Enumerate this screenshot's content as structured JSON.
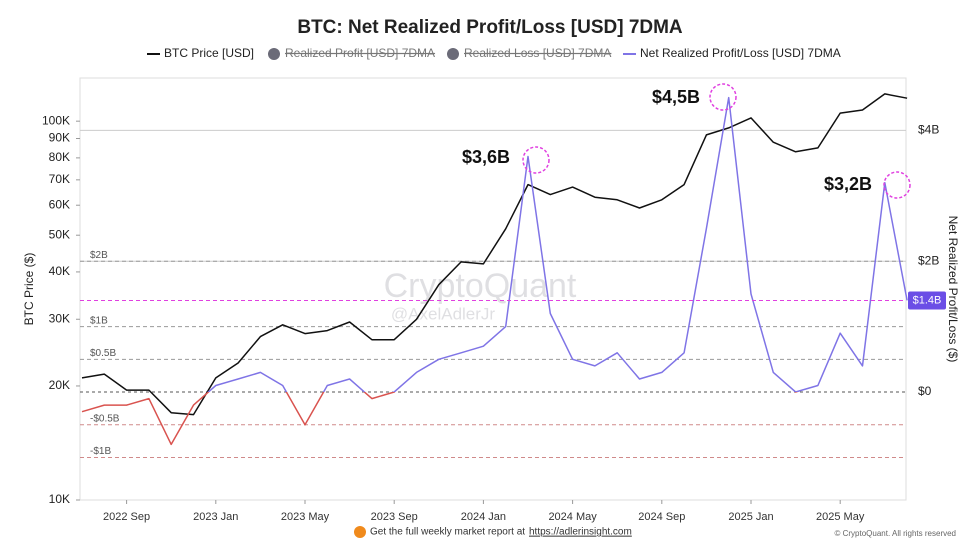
{
  "chart_data": {
    "type": "line",
    "title": "BTC: Net Realized Profit/Loss [USD] 7DMA",
    "x": [
      "2022 Jul",
      "2022 Aug",
      "2022 Sep",
      "2022 Oct",
      "2022 Nov",
      "2022 Dec",
      "2023 Jan",
      "2023 Feb",
      "2023 Mar",
      "2023 Apr",
      "2023 May",
      "2023 Jun",
      "2023 Jul",
      "2023 Aug",
      "2023 Sep",
      "2023 Oct",
      "2023 Nov",
      "2023 Dec",
      "2024 Jan",
      "2024 Feb",
      "2024 Mar",
      "2024 Apr",
      "2024 May",
      "2024 Jun",
      "2024 Jul",
      "2024 Aug",
      "2024 Sep",
      "2024 Oct",
      "2024 Nov",
      "2024 Dec",
      "2025 Jan",
      "2025 Feb",
      "2025 Mar",
      "2025 Apr",
      "2025 May",
      "2025 Jun",
      "2025 Jul",
      "2025 Aug"
    ],
    "xticks": [
      "2022 Sep",
      "2023 Jan",
      "2023 May",
      "2023 Sep",
      "2024 Jan",
      "2024 May",
      "2024 Sep",
      "2025 Jan",
      "2025 May"
    ],
    "series": [
      {
        "name": "BTC Price [USD]",
        "color": "#111111",
        "axis": "y",
        "values": [
          21000,
          21500,
          19500,
          19500,
          17000,
          16800,
          21000,
          23000,
          27000,
          29000,
          27500,
          28000,
          29500,
          26500,
          26500,
          30000,
          37000,
          42500,
          42000,
          52000,
          68000,
          64000,
          67000,
          63000,
          62000,
          59000,
          62000,
          68000,
          92000,
          96000,
          102000,
          88000,
          83000,
          85000,
          105000,
          107000,
          118000,
          115000
        ]
      },
      {
        "name": "Realized Profit [USD] 7DMA",
        "color": "#6b6b78",
        "hidden": true
      },
      {
        "name": "Realized Loss [USD] 7DMA",
        "color": "#6b6b78",
        "hidden": true
      },
      {
        "name": "Net Realized Profit/Loss [USD] 7DMA",
        "color": "#7f74e6",
        "negative_color": "#d9534f",
        "axis": "y2",
        "values": [
          -0.3,
          -0.2,
          -0.2,
          -0.1,
          -0.8,
          -0.2,
          0.1,
          0.2,
          0.3,
          0.1,
          -0.5,
          0.1,
          0.2,
          -0.1,
          0.0,
          0.3,
          0.5,
          0.6,
          0.7,
          1.0,
          3.6,
          1.2,
          0.5,
          0.4,
          0.6,
          0.2,
          0.3,
          0.6,
          2.5,
          4.5,
          1.5,
          0.3,
          0.0,
          0.1,
          0.9,
          0.4,
          3.2,
          1.4
        ]
      }
    ],
    "ylabel": "BTC Price ($)",
    "y2label": "Net Realized Profit/Loss ($)",
    "ylog": true,
    "ylim": [
      10000,
      130000
    ],
    "yticks": [
      {
        "value": 10000,
        "label": "10K"
      },
      {
        "value": 20000,
        "label": "20K"
      },
      {
        "value": 30000,
        "label": "30K"
      },
      {
        "value": 40000,
        "label": "40K"
      },
      {
        "value": 50000,
        "label": "50K"
      },
      {
        "value": 60000,
        "label": "60K"
      },
      {
        "value": 70000,
        "label": "70K"
      },
      {
        "value": 80000,
        "label": "80K"
      },
      {
        "value": 90000,
        "label": "90K"
      },
      {
        "value": 100000,
        "label": "100K"
      }
    ],
    "y2lim": [
      -1.65,
      4.8
    ],
    "y2ticks": [
      {
        "value": 0,
        "label": "$0"
      },
      {
        "value": 2,
        "label": "$2B"
      },
      {
        "value": 4,
        "label": "$4B"
      }
    ],
    "reference_lines": [
      {
        "value": 2,
        "label": "$2B"
      },
      {
        "value": 1,
        "label": "$1B"
      },
      {
        "value": 0.5,
        "label": "$0.5B"
      },
      {
        "value": -0.5,
        "label": "-$0.5B"
      },
      {
        "value": -1,
        "label": "-$1B"
      }
    ],
    "current": {
      "value": 1.4,
      "label": "$1.4B"
    },
    "annotations": [
      "$3,6B",
      "$4,5B",
      "$3,2B"
    ],
    "watermark": [
      "CryptoQuant",
      "@AxelAdlerJr"
    ],
    "footer": {
      "text": "Get the full weekly market report at",
      "link": "https://adlerinsight.com",
      "copyright": "© CryptoQuant. All rights reserved"
    }
  }
}
